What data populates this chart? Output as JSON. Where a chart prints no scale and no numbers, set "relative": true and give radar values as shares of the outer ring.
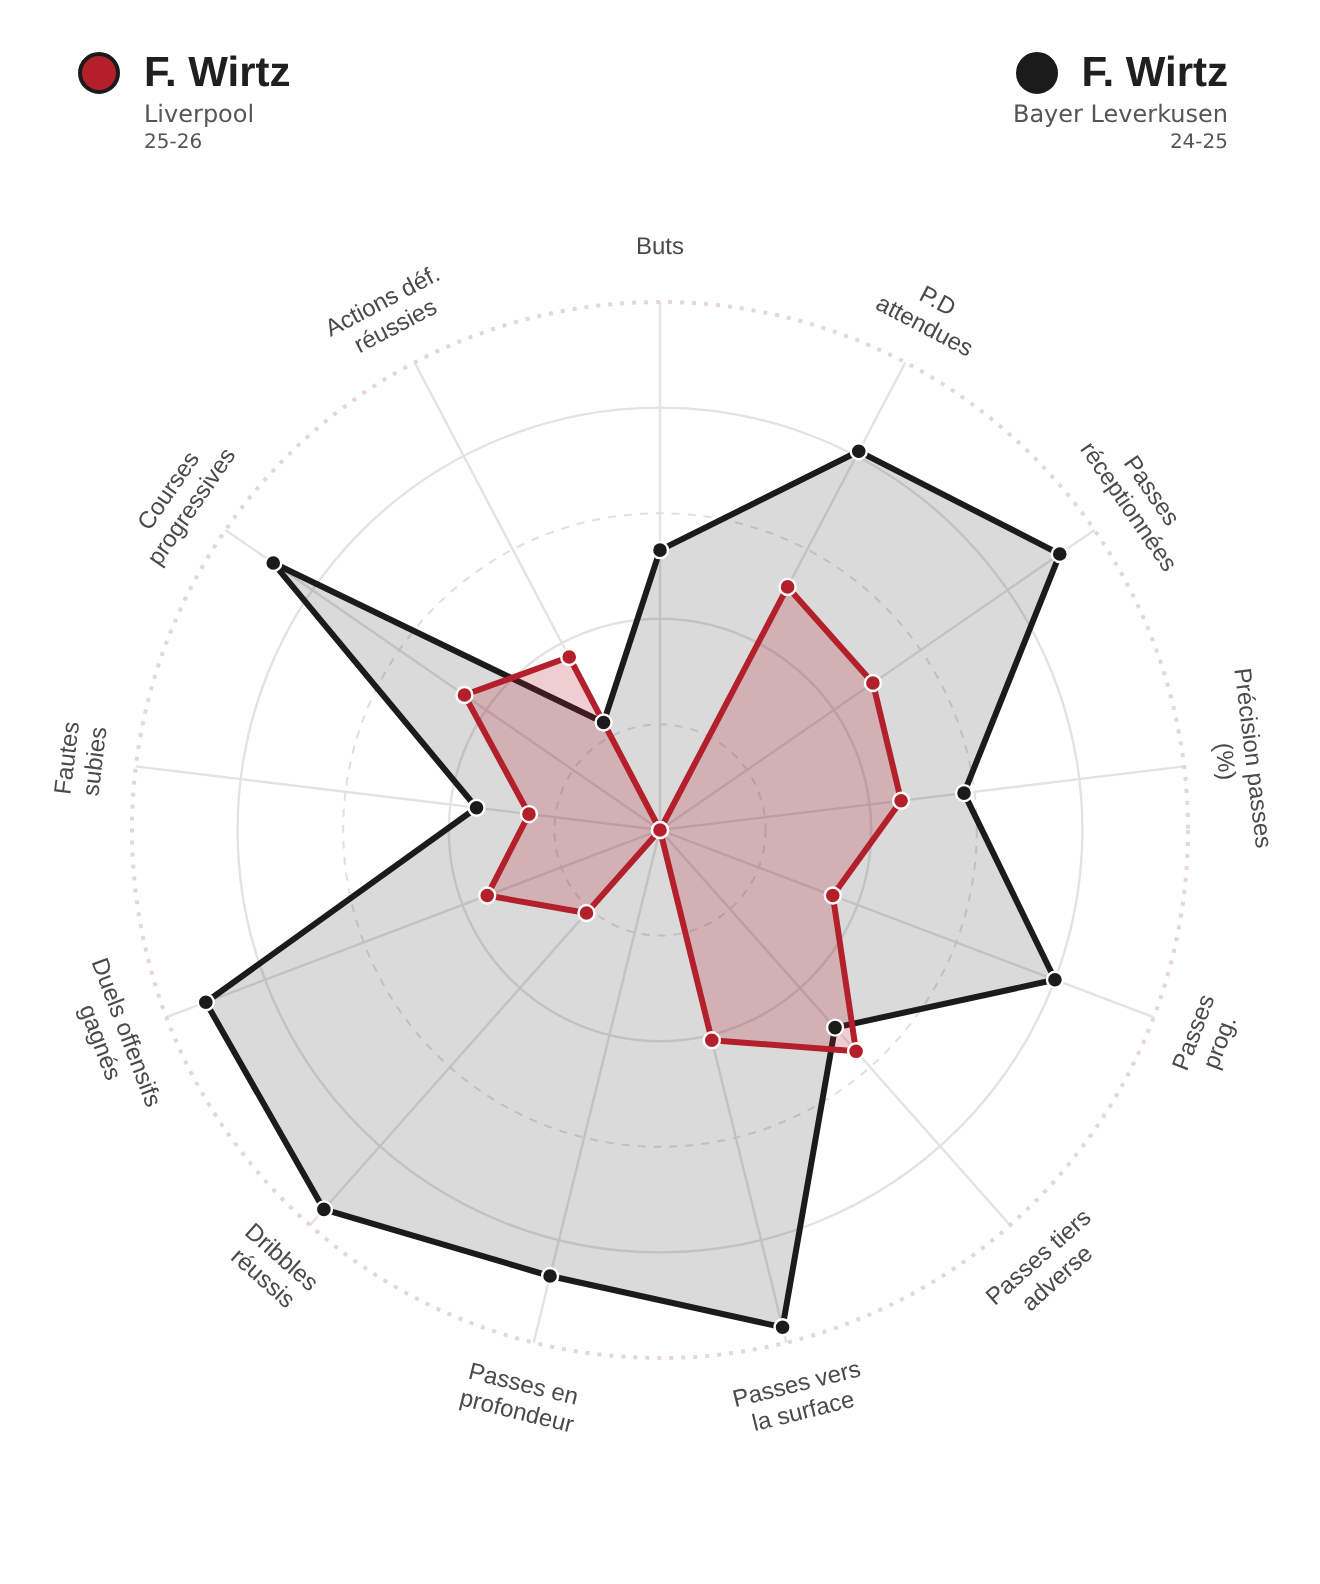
{
  "chart_data": {
    "type": "radar",
    "relative": true,
    "grid": true,
    "legend": "top",
    "marker": "circle",
    "categories": [
      "Buts",
      "P.D\nattendues",
      "Passes\nréceptionnées",
      "Précision passes\n(%)",
      "Passes\nprog.",
      "Passes tiers\nadverse",
      "Passes vers\nla surface",
      "Passes en\nprofondeur",
      "Dribbles\nréussis",
      "Duels offensifs\ngagnés",
      "Fautes\nsubies",
      "Courses\nprogressives",
      "Actions déf.\nréussies"
    ],
    "series": [
      {
        "name": "F. Wirtz",
        "color": "#b3202c",
        "values": [
          0,
          0.52,
          0.49,
          0.46,
          0.35,
          0.56,
          0.41,
          0,
          0.21,
          0.35,
          0.25,
          0.45,
          0.37
        ]
      },
      {
        "name": "F. Wirtz",
        "color": "#1b1b1b",
        "values": [
          0.53,
          0.81,
          0.92,
          0.58,
          0.8,
          0.5,
          0.97,
          0.87,
          0.96,
          0.92,
          0.35,
          0.89,
          0.23
        ]
      }
    ],
    "annotations": [
      "Liverpool",
      "25-26",
      "Bayer Leverkusen",
      "24-25"
    ]
  }
}
